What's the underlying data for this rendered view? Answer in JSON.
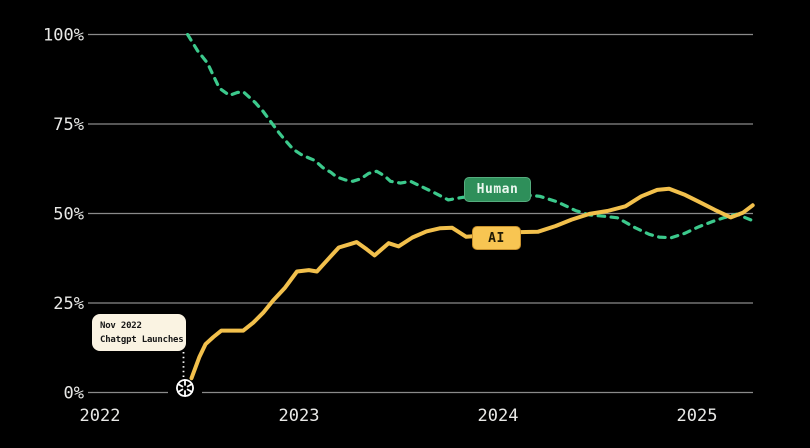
{
  "colors": {
    "background": "#000000",
    "grid": "#8a8a8a",
    "axis_text": "#e8e8e6",
    "human_line": "#3cc98c",
    "ai_line": "#f2c04c",
    "human_chip_bg": "#2e8f5a",
    "human_chip_border": "#55ad7e",
    "human_chip_text": "#e9f7ee",
    "ai_chip_bg": "#f8c552",
    "ai_chip_border": "#c8912d",
    "ai_chip_text": "#201a05",
    "annotation_bg": "#faf3e2",
    "annotation_text": "#171717",
    "connector": "#ffffff",
    "logo": "#ffffff"
  },
  "chart_data": {
    "type": "line",
    "ylim": [
      0,
      100
    ],
    "xlim": [
      2021.95,
      2025.32
    ],
    "grid": "horizontal",
    "y_ticks": {
      "values": [
        0,
        25,
        50,
        75,
        100
      ],
      "labels": [
        "0%",
        "25%",
        "50%",
        "75%",
        "100%"
      ]
    },
    "x_ticks": {
      "years": [
        2022,
        2023,
        2024,
        2025
      ],
      "labels": [
        "2022",
        "2023",
        "2024",
        "2025"
      ]
    },
    "series": [
      {
        "name": "Human",
        "style": "dashed",
        "color": "#3cc98c",
        "points": [
          [
            2022.44,
            100
          ],
          [
            2022.49,
            95.5
          ],
          [
            2022.54,
            92
          ],
          [
            2022.57,
            88.5
          ],
          [
            2022.6,
            85
          ],
          [
            2022.65,
            83
          ],
          [
            2022.69,
            83.8
          ],
          [
            2022.72,
            84
          ],
          [
            2022.78,
            81
          ],
          [
            2022.82,
            78.5
          ],
          [
            2022.86,
            75.5
          ],
          [
            2022.9,
            72.5
          ],
          [
            2022.93,
            70.5
          ],
          [
            2022.97,
            68
          ],
          [
            2023.01,
            66.5
          ],
          [
            2023.05,
            65.5
          ],
          [
            2023.08,
            64.8
          ],
          [
            2023.12,
            62.8
          ],
          [
            2023.16,
            61.5
          ],
          [
            2023.19,
            60.2
          ],
          [
            2023.23,
            59.4
          ],
          [
            2023.27,
            59
          ],
          [
            2023.31,
            59.7
          ],
          [
            2023.35,
            61.2
          ],
          [
            2023.39,
            61.8
          ],
          [
            2023.43,
            60.5
          ],
          [
            2023.46,
            59
          ],
          [
            2023.51,
            58.5
          ],
          [
            2023.56,
            59
          ],
          [
            2023.68,
            55.8
          ],
          [
            2023.75,
            53.8
          ],
          [
            2023.82,
            54.5
          ],
          [
            2023.96,
            55
          ],
          [
            2024.11,
            55.3
          ],
          [
            2024.21,
            54.8
          ],
          [
            2024.3,
            53.2
          ],
          [
            2024.39,
            50.8
          ],
          [
            2024.46,
            49.6
          ],
          [
            2024.54,
            49.2
          ],
          [
            2024.6,
            48.8
          ],
          [
            2024.69,
            46
          ],
          [
            2024.76,
            44.2
          ],
          [
            2024.81,
            43.4
          ],
          [
            2024.87,
            43.2
          ],
          [
            2024.94,
            44.5
          ],
          [
            2025.01,
            46.3
          ],
          [
            2025.08,
            47.8
          ],
          [
            2025.14,
            48.9
          ],
          [
            2025.2,
            49.8
          ],
          [
            2025.28,
            48
          ]
        ]
      },
      {
        "name": "AI",
        "style": "solid",
        "color": "#f2c04c",
        "points": [
          [
            2022.46,
            4
          ],
          [
            2022.5,
            10
          ],
          [
            2022.53,
            13.5
          ],
          [
            2022.57,
            15.5
          ],
          [
            2022.61,
            17.3
          ],
          [
            2022.72,
            17.3
          ],
          [
            2022.77,
            19.5
          ],
          [
            2022.82,
            22.3
          ],
          [
            2022.87,
            25.7
          ],
          [
            2022.93,
            29.3
          ],
          [
            2022.99,
            33.8
          ],
          [
            2023.05,
            34.2
          ],
          [
            2023.09,
            33.8
          ],
          [
            2023.15,
            37.5
          ],
          [
            2023.2,
            40.5
          ],
          [
            2023.26,
            41.5
          ],
          [
            2023.29,
            42
          ],
          [
            2023.34,
            40
          ],
          [
            2023.38,
            38.3
          ],
          [
            2023.45,
            41.7
          ],
          [
            2023.5,
            40.8
          ],
          [
            2023.57,
            43.3
          ],
          [
            2023.64,
            45
          ],
          [
            2023.71,
            45.9
          ],
          [
            2023.77,
            46
          ],
          [
            2023.84,
            43.5
          ],
          [
            2023.91,
            43.8
          ],
          [
            2024.01,
            44.2
          ],
          [
            2024.11,
            44.8
          ],
          [
            2024.2,
            44.9
          ],
          [
            2024.29,
            46.5
          ],
          [
            2024.37,
            48.3
          ],
          [
            2024.46,
            49.9
          ],
          [
            2024.55,
            50.7
          ],
          [
            2024.64,
            52
          ],
          [
            2024.72,
            54.8
          ],
          [
            2024.8,
            56.6
          ],
          [
            2024.86,
            56.9
          ],
          [
            2024.94,
            55.2
          ],
          [
            2025.02,
            53
          ],
          [
            2025.09,
            51
          ],
          [
            2025.17,
            48.9
          ],
          [
            2025.23,
            50.2
          ],
          [
            2025.28,
            52.3
          ]
        ]
      }
    ],
    "legend": [
      {
        "label": "Human",
        "bg": "#2e8f5a",
        "border": "#55ad7e",
        "text_color": "#e9f7ee"
      },
      {
        "label": "AI",
        "bg": "#f8c552",
        "border": "#c8912d",
        "text_color": "#201a05"
      }
    ],
    "annotation": {
      "line1": "Nov 2022",
      "line2": "Chatgpt Launches",
      "x_year": 2022.42,
      "marker": "openai-logo"
    }
  }
}
